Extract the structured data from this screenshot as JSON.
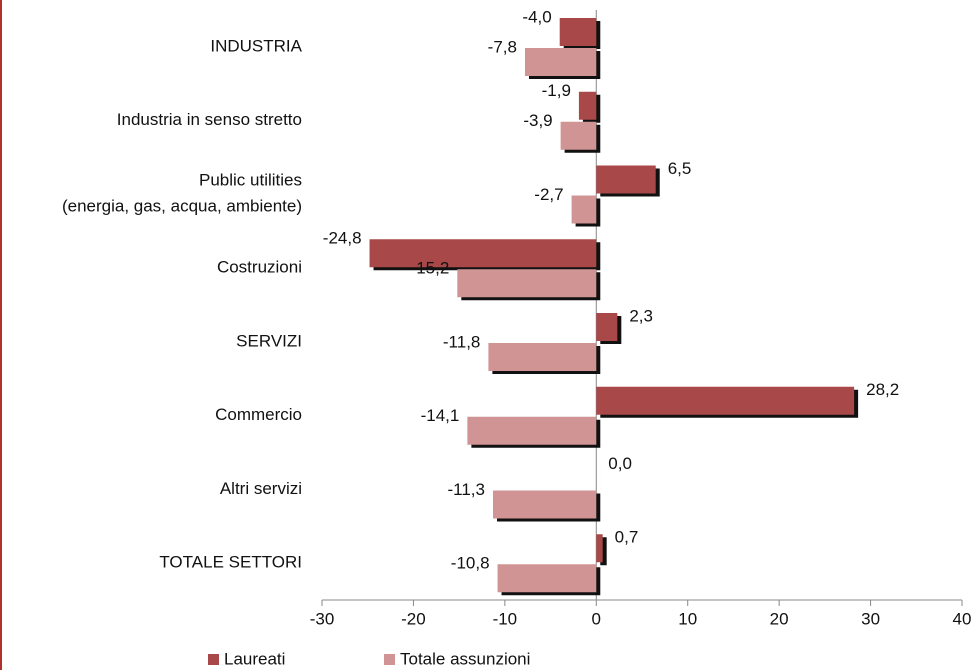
{
  "chart_data": {
    "type": "bar",
    "orientation": "horizontal",
    "categories": [
      "INDUSTRIA",
      "Industria in senso stretto",
      "Public utilities\n(energia, gas, acqua, ambiente)",
      "Costruzioni",
      "SERVIZI",
      "Commercio",
      "Altri servizi",
      "TOTALE SETTORI"
    ],
    "series": [
      {
        "name": "Laureati",
        "color": "#a84848",
        "values": [
          -4.0,
          -1.9,
          6.5,
          -24.8,
          2.3,
          28.2,
          0.0,
          0.7
        ],
        "value_labels": [
          "-4,0",
          "-1,9",
          "6,5",
          "-24,8",
          "2,3",
          "28,2",
          "0,0",
          "0,7"
        ]
      },
      {
        "name": "Totale assunzioni",
        "color": "#d09494",
        "values": [
          -7.8,
          -3.9,
          -2.7,
          -15.2,
          -11.8,
          -14.1,
          -11.3,
          -10.8
        ],
        "value_labels": [
          "-7,8",
          "-3,9",
          "-2,7",
          "-15,2",
          "-11,8",
          "-14,1",
          "-11,3",
          "-10,8"
        ]
      }
    ],
    "xlim": [
      -30,
      40
    ],
    "xticks": [
      -30,
      -20,
      -10,
      0,
      10,
      20,
      30,
      40
    ],
    "legend": "bottom"
  }
}
